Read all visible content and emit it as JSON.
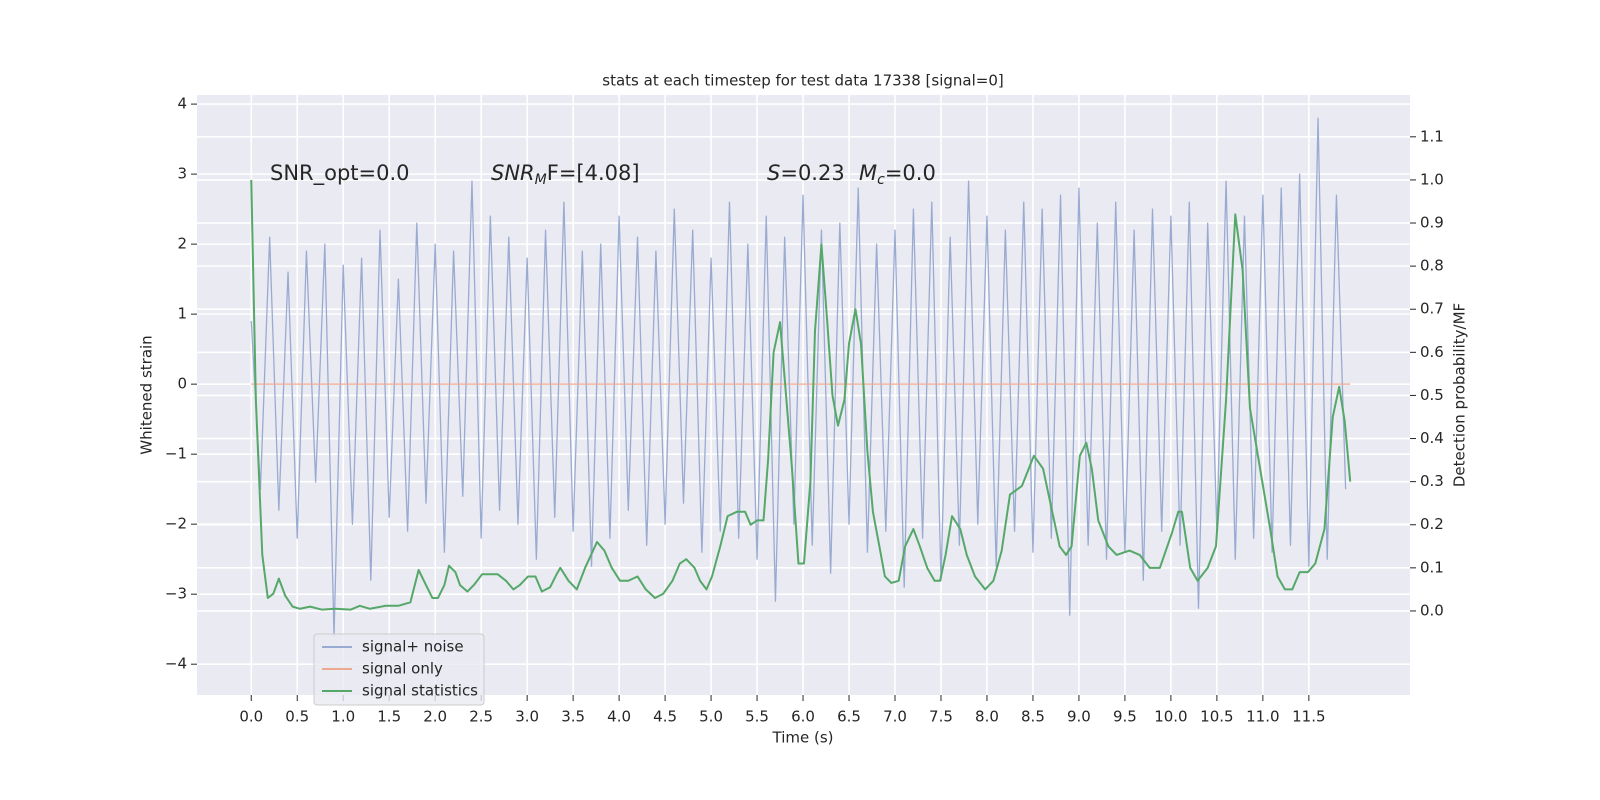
{
  "chart_data": {
    "type": "line",
    "title": "stats at each timestep for test data 17338 [signal=0]",
    "xlabel": "Time (s)",
    "ylabel": "Whitened strain",
    "y2label": "Detection probability/MF",
    "annotations": [
      {
        "text": "SNR_opt=0.0"
      },
      {
        "base": "SNR",
        "sub": "M",
        "tail": "F=[4.08]"
      },
      {
        "base": "S",
        "tail": "=0.23"
      },
      {
        "base": "M",
        "sub": "c",
        "tail": "=0.0"
      }
    ],
    "grid": true,
    "legend": "lower left",
    "xlim": [
      -0.59,
      12.6
    ],
    "ylim": [
      -4.44,
      4.13
    ],
    "y2lim": [
      -0.195,
      1.197
    ],
    "xticks": [
      {
        "value": 0,
        "label": "0.0"
      },
      {
        "value": 0.5,
        "label": "0.5"
      },
      {
        "value": 1,
        "label": "1.0"
      },
      {
        "value": 1.5,
        "label": "1.5"
      },
      {
        "value": 2,
        "label": "2.0"
      },
      {
        "value": 2.5,
        "label": "2.5"
      },
      {
        "value": 3,
        "label": "3.0"
      },
      {
        "value": 3.5,
        "label": "3.5"
      },
      {
        "value": 4,
        "label": "4.0"
      },
      {
        "value": 4.5,
        "label": "4.5"
      },
      {
        "value": 5,
        "label": "5.0"
      },
      {
        "value": 5.5,
        "label": "5.5"
      },
      {
        "value": 6,
        "label": "6.0"
      },
      {
        "value": 6.5,
        "label": "6.5"
      },
      {
        "value": 7,
        "label": "7.0"
      },
      {
        "value": 7.5,
        "label": "7.5"
      },
      {
        "value": 8,
        "label": "8.0"
      },
      {
        "value": 8.5,
        "label": "8.5"
      },
      {
        "value": 9,
        "label": "9.0"
      },
      {
        "value": 9.5,
        "label": "9.5"
      },
      {
        "value": 10,
        "label": "10.0"
      },
      {
        "value": 10.5,
        "label": "10.5"
      },
      {
        "value": 11,
        "label": "11.0"
      },
      {
        "value": 11.5,
        "label": "11.5"
      }
    ],
    "yticks": [
      {
        "value": -4,
        "label": "−4"
      },
      {
        "value": -3,
        "label": "−3"
      },
      {
        "value": -2,
        "label": "−2"
      },
      {
        "value": -1,
        "label": "−1"
      },
      0,
      1,
      2,
      3,
      4
    ],
    "y2ticks": [
      {
        "value": 0,
        "label": "0.0"
      },
      {
        "value": 0.1,
        "label": "0.1"
      },
      {
        "value": 0.2,
        "label": "0.2"
      },
      {
        "value": 0.3,
        "label": "0.3"
      },
      {
        "value": 0.4,
        "label": "0.4"
      },
      {
        "value": 0.5,
        "label": "0.5"
      },
      {
        "value": 0.6,
        "label": "0.6"
      },
      {
        "value": 0.7,
        "label": "0.7"
      },
      {
        "value": 0.8,
        "label": "0.8"
      },
      {
        "value": 0.9,
        "label": "0.9"
      },
      {
        "value": 1,
        "label": "1.0"
      },
      {
        "value": 1.1,
        "label": "1.1"
      }
    ],
    "series": [
      {
        "name": "signal+ noise",
        "color": "#99abd1",
        "x": [
          0,
          0.1,
          0.2,
          0.3,
          0.4,
          0.5,
          0.6,
          0.7,
          0.8,
          0.9,
          1,
          1.1,
          1.2,
          1.3,
          1.4,
          1.5,
          1.6,
          1.7,
          1.8,
          1.9,
          2,
          2.1,
          2.2,
          2.3,
          2.4,
          2.5,
          2.6,
          2.7,
          2.8,
          2.9,
          3,
          3.1,
          3.2,
          3.3,
          3.4,
          3.5,
          3.6,
          3.7,
          3.8,
          3.9,
          4,
          4.1,
          4.2,
          4.3,
          4.4,
          4.5,
          4.6,
          4.7,
          4.8,
          4.9,
          5,
          5.1,
          5.2,
          5.3,
          5.4,
          5.5,
          5.6,
          5.7,
          5.8,
          5.9,
          6,
          6.1,
          6.2,
          6.3,
          6.4,
          6.5,
          6.6,
          6.7,
          6.8,
          6.9,
          7,
          7.1,
          7.2,
          7.3,
          7.4,
          7.5,
          7.6,
          7.7,
          7.8,
          7.9,
          8,
          8.1,
          8.2,
          8.3,
          8.4,
          8.5,
          8.6,
          8.7,
          8.8,
          8.9,
          9,
          9.1,
          9.2,
          9.3,
          9.4,
          9.5,
          9.6,
          9.7,
          9.8,
          9.9,
          10,
          10.1,
          10.2,
          10.3,
          10.4,
          10.5,
          10.6,
          10.7,
          10.8,
          10.9,
          11,
          11.1,
          11.2,
          11.3,
          11.4,
          11.5,
          11.6,
          11.7,
          11.8,
          11.9
        ],
        "values": [
          0.9,
          -1.5,
          2.1,
          -1.8,
          1.6,
          -2.2,
          1.9,
          -1.4,
          2.0,
          -3.6,
          1.7,
          -2.0,
          1.8,
          -2.8,
          2.2,
          -1.9,
          1.5,
          -2.1,
          2.3,
          -1.7,
          2.0,
          -2.4,
          1.9,
          -1.6,
          2.9,
          -2.2,
          2.4,
          -1.8,
          2.1,
          -2.0,
          1.8,
          -2.5,
          2.2,
          -1.9,
          2.6,
          -2.1,
          1.9,
          -2.6,
          2.0,
          -2.2,
          2.4,
          -1.8,
          2.1,
          -2.3,
          1.9,
          -2.0,
          2.5,
          -1.7,
          2.2,
          -2.4,
          1.8,
          -2.1,
          2.6,
          -2.2,
          2.0,
          -2.5,
          2.4,
          -3.1,
          2.1,
          -2.0,
          2.7,
          -2.3,
          2.2,
          -2.7,
          2.3,
          -2.0,
          2.8,
          -2.4,
          2.0,
          -2.1,
          2.2,
          -2.9,
          2.5,
          -2.2,
          2.6,
          -2.8,
          2.1,
          -2.3,
          2.9,
          -2.0,
          2.4,
          -2.6,
          2.2,
          -2.1,
          2.6,
          -2.4,
          2.5,
          -2.2,
          2.7,
          -3.3,
          2.8,
          -2.3,
          2.3,
          -2.5,
          2.6,
          -2.4,
          2.2,
          -2.8,
          2.5,
          -2.1,
          2.4,
          -2.3,
          2.6,
          -3.2,
          2.3,
          -2.1,
          2.9,
          -2.5,
          2.4,
          -2.2,
          2.7,
          -2.4,
          2.8,
          -2.3,
          3.0,
          -2.6,
          3.8,
          -2.5,
          2.7,
          -1.5
        ]
      },
      {
        "name": "signal only",
        "color": "#eeaa90",
        "x": [
          0,
          11.95
        ],
        "values": [
          0,
          0
        ]
      },
      {
        "name": "signal statistics",
        "color": "#55a868",
        "axis": "y2",
        "x": [
          0,
          0.05,
          0.12,
          0.18,
          0.24,
          0.3,
          0.37,
          0.45,
          0.53,
          0.64,
          0.77,
          0.91,
          1.08,
          1.18,
          1.29,
          1.46,
          1.6,
          1.73,
          1.82,
          1.9,
          1.97,
          2.03,
          2.1,
          2.15,
          2.22,
          2.27,
          2.35,
          2.42,
          2.51,
          2.68,
          2.77,
          2.85,
          2.92,
          3.01,
          3.09,
          3.16,
          3.25,
          3.32,
          3.36,
          3.45,
          3.54,
          3.63,
          3.76,
          3.84,
          3.92,
          4.01,
          4.1,
          4.2,
          4.29,
          4.39,
          4.48,
          4.58,
          4.66,
          4.73,
          4.82,
          4.88,
          4.95,
          5.01,
          5.1,
          5.18,
          5.28,
          5.37,
          5.43,
          5.5,
          5.57,
          5.62,
          5.68,
          5.75,
          5.8,
          5.88,
          5.95,
          6.01,
          6.08,
          6.13,
          6.2,
          6.26,
          6.32,
          6.38,
          6.45,
          6.5,
          6.57,
          6.63,
          6.7,
          6.76,
          6.83,
          6.89,
          6.96,
          7.04,
          7.11,
          7.2,
          7.27,
          7.35,
          7.43,
          7.49,
          7.55,
          7.62,
          7.71,
          7.78,
          7.87,
          7.98,
          8.07,
          8.16,
          8.25,
          8.38,
          8.51,
          8.61,
          8.71,
          8.79,
          8.86,
          8.92,
          9.01,
          9.08,
          9.14,
          9.21,
          9.32,
          9.41,
          9.55,
          9.66,
          9.77,
          9.88,
          10.01,
          10.08,
          10.12,
          10.21,
          10.29,
          10.4,
          10.49,
          10.6,
          10.7,
          10.78,
          10.86,
          10.97,
          11.08,
          11.16,
          11.24,
          11.32,
          11.4,
          11.49,
          11.57,
          11.67,
          11.76,
          11.83,
          11.89,
          11.95
        ],
        "values": [
          1.0,
          0.49,
          0.13,
          0.03,
          0.04,
          0.075,
          0.035,
          0.01,
          0.005,
          0.01,
          0.003,
          0.005,
          0.003,
          0.012,
          0.005,
          0.012,
          0.012,
          0.02,
          0.095,
          0.06,
          0.03,
          0.03,
          0.06,
          0.105,
          0.09,
          0.06,
          0.045,
          0.06,
          0.085,
          0.085,
          0.07,
          0.05,
          0.06,
          0.08,
          0.08,
          0.045,
          0.055,
          0.085,
          0.1,
          0.07,
          0.05,
          0.1,
          0.16,
          0.14,
          0.1,
          0.07,
          0.07,
          0.08,
          0.05,
          0.03,
          0.04,
          0.07,
          0.11,
          0.12,
          0.1,
          0.07,
          0.05,
          0.08,
          0.15,
          0.22,
          0.23,
          0.23,
          0.2,
          0.21,
          0.21,
          0.35,
          0.6,
          0.67,
          0.54,
          0.33,
          0.11,
          0.11,
          0.3,
          0.65,
          0.85,
          0.68,
          0.5,
          0.43,
          0.49,
          0.62,
          0.7,
          0.62,
          0.37,
          0.23,
          0.15,
          0.08,
          0.065,
          0.07,
          0.15,
          0.19,
          0.15,
          0.1,
          0.07,
          0.07,
          0.13,
          0.22,
          0.19,
          0.13,
          0.08,
          0.05,
          0.07,
          0.14,
          0.27,
          0.29,
          0.36,
          0.33,
          0.23,
          0.15,
          0.13,
          0.15,
          0.36,
          0.39,
          0.33,
          0.21,
          0.15,
          0.13,
          0.14,
          0.13,
          0.1,
          0.1,
          0.18,
          0.23,
          0.23,
          0.1,
          0.07,
          0.1,
          0.15,
          0.49,
          0.92,
          0.79,
          0.47,
          0.33,
          0.19,
          0.08,
          0.05,
          0.05,
          0.09,
          0.09,
          0.11,
          0.19,
          0.45,
          0.52,
          0.44,
          0.3
        ]
      }
    ]
  }
}
